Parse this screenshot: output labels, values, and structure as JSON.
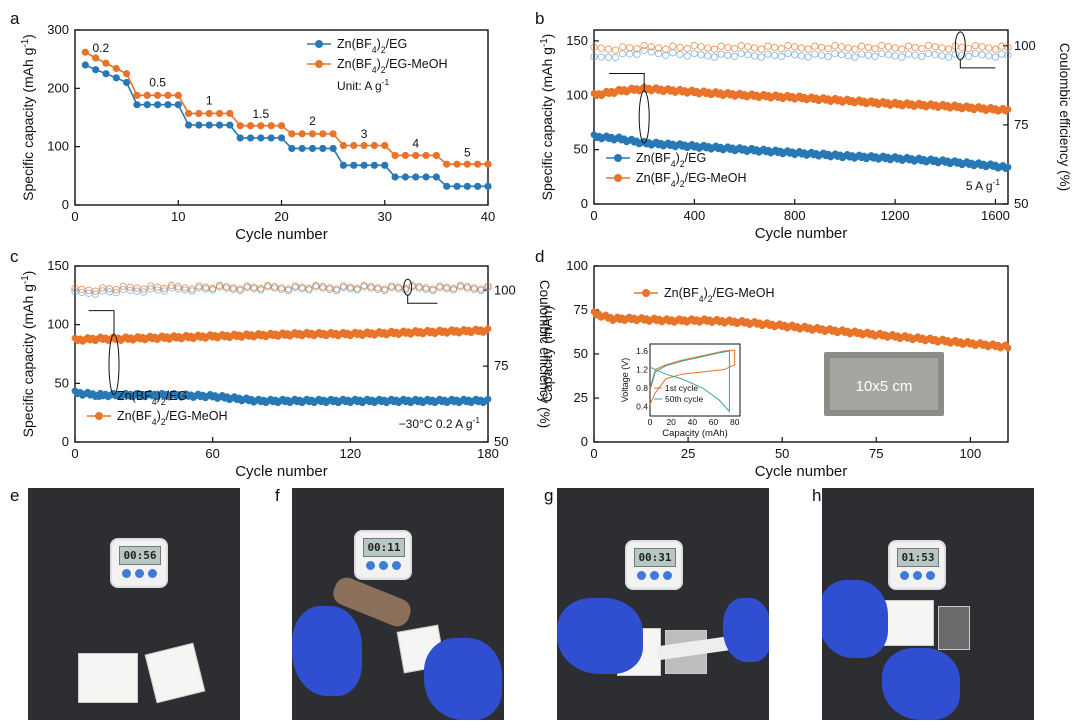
{
  "panel_labels": [
    "a",
    "b",
    "c",
    "d",
    "e",
    "f",
    "g",
    "h"
  ],
  "chart_data": [
    {
      "id": "a",
      "type": "scatter",
      "title": "",
      "xlabel": "Cycle number",
      "ylabel": "Specific capacity (mAh g-1)",
      "xlim": [
        0,
        40
      ],
      "ylim": [
        0,
        300
      ],
      "xticks": [
        0,
        10,
        20,
        30,
        40
      ],
      "yticks": [
        0,
        100,
        200,
        300
      ],
      "legend": {
        "position": "top-right",
        "note": "Unit: A g-1"
      },
      "rate_labels": [
        {
          "text": "0.2",
          "x": 2.5,
          "y": 262
        },
        {
          "text": "0.5",
          "x": 8,
          "y": 203
        },
        {
          "text": "1",
          "x": 13,
          "y": 172
        },
        {
          "text": "1.5",
          "x": 18,
          "y": 149
        },
        {
          "text": "2",
          "x": 23,
          "y": 137
        },
        {
          "text": "3",
          "x": 28,
          "y": 115
        },
        {
          "text": "4",
          "x": 33,
          "y": 99
        },
        {
          "text": "5",
          "x": 38,
          "y": 83
        }
      ],
      "series": [
        {
          "name": "Zn(BF4)2/EG",
          "color": "#2878b5",
          "x": [
            1,
            2,
            3,
            4,
            5,
            6,
            7,
            8,
            9,
            10,
            11,
            12,
            13,
            14,
            15,
            16,
            17,
            18,
            19,
            20,
            21,
            22,
            23,
            24,
            25,
            26,
            27,
            28,
            29,
            30,
            31,
            32,
            33,
            34,
            35,
            36,
            37,
            38,
            39,
            40
          ],
          "y": [
            240,
            232,
            225,
            218,
            210,
            172,
            172,
            172,
            172,
            172,
            137,
            137,
            137,
            137,
            137,
            115,
            115,
            115,
            115,
            115,
            97,
            97,
            97,
            97,
            97,
            68,
            68,
            68,
            68,
            68,
            48,
            48,
            48,
            48,
            48,
            32,
            32,
            32,
            32,
            32
          ]
        },
        {
          "name": "Zn(BF4)2/EG-MeOH",
          "color": "#e8742a",
          "x": [
            1,
            2,
            3,
            4,
            5,
            6,
            7,
            8,
            9,
            10,
            11,
            12,
            13,
            14,
            15,
            16,
            17,
            18,
            19,
            20,
            21,
            22,
            23,
            24,
            25,
            26,
            27,
            28,
            29,
            30,
            31,
            32,
            33,
            34,
            35,
            36,
            37,
            38,
            39,
            40
          ],
          "y": [
            262,
            252,
            243,
            234,
            225,
            188,
            188,
            188,
            188,
            188,
            157,
            157,
            157,
            157,
            157,
            136,
            136,
            136,
            136,
            136,
            122,
            122,
            122,
            122,
            122,
            102,
            102,
            102,
            102,
            102,
            85,
            85,
            85,
            85,
            85,
            70,
            70,
            70,
            70,
            70
          ]
        }
      ]
    },
    {
      "id": "b",
      "type": "scatter",
      "title": "",
      "xlabel": "Cycle number",
      "ylabel": "Specific capacity (mAh g-1)",
      "y2label": "Coulombic efficiency (%)",
      "xlim": [
        0,
        1650
      ],
      "ylim": [
        0,
        160
      ],
      "y2lim": [
        50,
        105
      ],
      "xticks": [
        0,
        400,
        800,
        1200,
        1600
      ],
      "yticks": [
        0,
        50,
        100,
        150
      ],
      "y2ticks": [
        50,
        75,
        100
      ],
      "legend": {
        "position": "bottom-left"
      },
      "condition": "5 A g-1",
      "series": [
        {
          "name": "Zn(BF4)2/EG",
          "axis": "left",
          "color": "#2878b5",
          "x": [
            0,
            100,
            200,
            400,
            600,
            800,
            1000,
            1200,
            1400,
            1600,
            1650
          ],
          "y": [
            62,
            60,
            56,
            53,
            50,
            47,
            44,
            42,
            39,
            35,
            33
          ]
        },
        {
          "name": "Zn(BF4)2/EG-MeOH",
          "axis": "left",
          "color": "#e8742a",
          "x": [
            0,
            100,
            200,
            400,
            600,
            800,
            1000,
            1200,
            1400,
            1600,
            1650
          ],
          "y": [
            100,
            104,
            106,
            103,
            100,
            98,
            95,
            92,
            90,
            87,
            86
          ]
        },
        {
          "name": "Zn(BF4)2/EG CE",
          "axis": "right",
          "color": "#6aa2d6",
          "hollow": true,
          "x": [
            0,
            200,
            400,
            800,
            1200,
            1600,
            1650
          ],
          "y": [
            96,
            98,
            97,
            97,
            97,
            97,
            97
          ]
        },
        {
          "name": "Zn(BF4)2/EG-MeOH CE",
          "axis": "right",
          "color": "#e8742a",
          "hollow": true,
          "x": [
            0,
            200,
            400,
            800,
            1200,
            1600,
            1650
          ],
          "y": [
            99,
            99.5,
            99.5,
            99.5,
            99.5,
            99.5,
            99.5
          ]
        }
      ]
    },
    {
      "id": "c",
      "type": "scatter",
      "title": "",
      "xlabel": "Cycle number",
      "ylabel": "Specific capacity (mAh g-1)",
      "y2label": "Coulombic efficiency (%)",
      "xlim": [
        0,
        180
      ],
      "ylim": [
        0,
        150
      ],
      "y2lim": [
        50,
        108
      ],
      "xticks": [
        0,
        60,
        120,
        180
      ],
      "yticks": [
        0,
        50,
        100,
        150
      ],
      "y2ticks": [
        50,
        75,
        100
      ],
      "legend": {
        "position": "bottom-left"
      },
      "condition": "−30°C  0.2 A g-1",
      "series": [
        {
          "name": "Zn(BF4)2/EG",
          "axis": "left",
          "color": "#2878b5",
          "x": [
            0,
            10,
            20,
            40,
            60,
            80,
            100,
            120,
            140,
            160,
            180
          ],
          "y": [
            42,
            40,
            40,
            40,
            39,
            35,
            35,
            35,
            35,
            35,
            35
          ]
        },
        {
          "name": "Zn(BF4)2/EG-MeOH",
          "axis": "left",
          "color": "#e8742a",
          "x": [
            0,
            10,
            20,
            40,
            60,
            80,
            100,
            120,
            140,
            160,
            180
          ],
          "y": [
            87,
            88,
            88,
            89,
            90,
            91,
            92,
            92,
            93,
            94,
            95
          ]
        },
        {
          "name": "Zn(BF4)2/EG CE",
          "axis": "right",
          "color": "#6aa2d6",
          "hollow": true,
          "x": [
            0,
            30,
            60,
            90,
            120,
            150,
            180
          ],
          "y": [
            99,
            100,
            100.5,
            100.5,
            100.5,
            100.5,
            100.5
          ]
        },
        {
          "name": "Zn(BF4)2/EG-MeOH CE",
          "axis": "right",
          "color": "#e8742a",
          "hollow": true,
          "x": [
            0,
            30,
            60,
            90,
            120,
            150,
            180
          ],
          "y": [
            100,
            101,
            101,
            101,
            101,
            101,
            101
          ]
        }
      ]
    },
    {
      "id": "d",
      "type": "scatter",
      "title": "",
      "xlabel": "Cycle number",
      "ylabel": "Capacity (mAh)",
      "xlim": [
        0,
        110
      ],
      "ylim": [
        0,
        100
      ],
      "xticks": [
        0,
        25,
        50,
        75,
        100
      ],
      "yticks": [
        0,
        25,
        50,
        75,
        100
      ],
      "legend": {
        "position": "top-left"
      },
      "photo_label": "10x5 cm",
      "series": [
        {
          "name": "Zn(BF4)2/EG-MeOH",
          "color": "#e8742a",
          "x": [
            0,
            5,
            10,
            20,
            30,
            40,
            50,
            60,
            70,
            80,
            90,
            100,
            110
          ],
          "y": [
            73,
            70,
            70,
            69,
            69,
            68,
            66,
            64,
            62,
            60,
            58,
            56,
            54
          ]
        }
      ],
      "inset": {
        "type": "line",
        "xlabel": "Capacity (mAh)",
        "ylabel": "Voltage (V)",
        "xlim": [
          0,
          85
        ],
        "ylim": [
          0.2,
          1.75
        ],
        "xticks": [
          0,
          20,
          40,
          60,
          80
        ],
        "yticks": [
          0.4,
          0.8,
          1.2,
          1.6
        ],
        "series": [
          {
            "name": "1st cycle",
            "color": "#e8742a",
            "x": [
              0,
              5,
              15,
              30,
              50,
              70,
              80,
              80,
              70,
              50,
              30,
              15,
              5,
              0
            ],
            "y": [
              0.8,
              1.2,
              1.3,
              1.4,
              1.5,
              1.6,
              1.62,
              1.3,
              1.2,
              1.15,
              1.1,
              1.0,
              0.7,
              0.45
            ]
          },
          {
            "name": "50th cycle",
            "color": "#3aa39a",
            "x": [
              0,
              5,
              15,
              30,
              50,
              65,
              75,
              75,
              65,
              50,
              30,
              15,
              5,
              0
            ],
            "y": [
              0.75,
              1.15,
              1.28,
              1.38,
              1.48,
              1.56,
              1.6,
              0.3,
              0.55,
              0.8,
              1.0,
              1.1,
              1.2,
              1.25
            ]
          }
        ]
      }
    }
  ],
  "photos": [
    {
      "id": "e",
      "timer": "00:56"
    },
    {
      "id": "f",
      "timer": "00:11"
    },
    {
      "id": "g",
      "timer": "00:31"
    },
    {
      "id": "h",
      "timer": "01:53"
    }
  ]
}
